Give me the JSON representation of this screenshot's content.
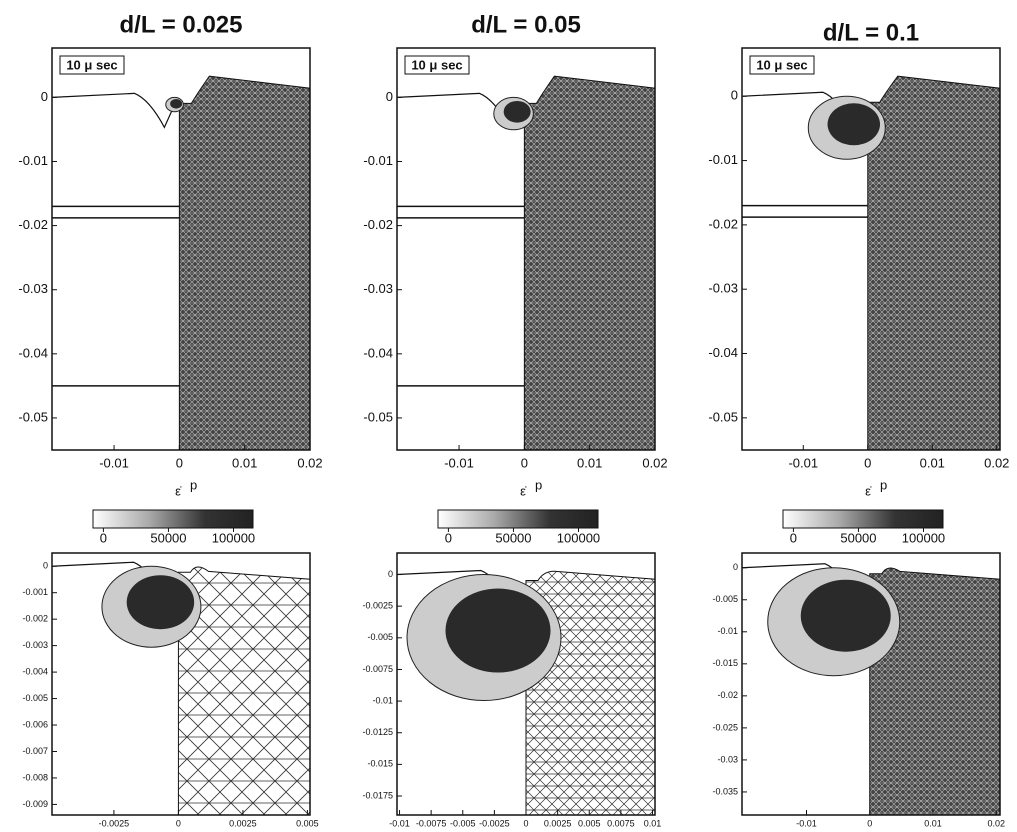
{
  "top_panels": [
    {
      "title": "d/L = 0.025",
      "time_label": "10 μ sec",
      "xlim": [
        -0.0195,
        0.02
      ],
      "ylim": [
        -0.055,
        0.0077
      ],
      "xticks": [
        -0.01,
        0,
        0.01,
        0.02
      ],
      "yticks": [
        0,
        -0.01,
        -0.02,
        -0.03,
        -0.04,
        -0.05
      ]
    },
    {
      "title": "d/L = 0.05",
      "time_label": "10 μ sec",
      "xlim": [
        -0.0195,
        0.02
      ],
      "ylim": [
        -0.055,
        0.0077
      ],
      "xticks": [
        -0.01,
        0,
        0.01,
        0.02
      ],
      "yticks": [
        0,
        -0.01,
        -0.02,
        -0.03,
        -0.04,
        -0.05
      ]
    },
    {
      "title": "d/L = 0.1",
      "time_label": "10 μ sec",
      "xlim": [
        -0.0195,
        0.0205
      ],
      "ylim": [
        -0.055,
        0.0075
      ],
      "xticks": [
        -0.01,
        0,
        0.01,
        0.02
      ],
      "yticks": [
        0,
        -0.01,
        -0.02,
        -0.03,
        -0.04,
        -0.05
      ]
    }
  ],
  "colorbars": [
    {
      "symbol": "ε̇",
      "superscript": "p",
      "clim": [
        -8000,
        115000
      ],
      "ticks": [
        0,
        50000,
        100000
      ]
    },
    {
      "symbol": "ε̇",
      "superscript": "p",
      "clim": [
        -8000,
        115000
      ],
      "ticks": [
        0,
        50000,
        100000
      ]
    },
    {
      "symbol": "ε̇",
      "superscript": "p",
      "clim": [
        -8000,
        115000
      ],
      "ticks": [
        0,
        50000,
        100000
      ]
    }
  ],
  "bottom_panels": [
    {
      "xlim": [
        -0.0049,
        0.0051
      ],
      "ylim": [
        -0.0094,
        0.0005
      ],
      "xticks": [
        -0.0025,
        0,
        0.0025,
        0.005
      ],
      "yticks": [
        0,
        -0.001,
        -0.002,
        -0.003,
        -0.004,
        -0.005,
        -0.006,
        -0.007,
        -0.008,
        -0.009
      ]
    },
    {
      "xlim": [
        -0.0102,
        0.0102
      ],
      "ylim": [
        -0.019,
        0.0017
      ],
      "xticks": [
        -0.01,
        -0.0075,
        -0.005,
        -0.0025,
        0,
        0.0025,
        0.005,
        0.0075,
        0.01
      ],
      "yticks": [
        0,
        -0.0025,
        -0.005,
        -0.0075,
        -0.01,
        -0.0125,
        -0.015,
        -0.0175
      ]
    },
    {
      "xlim": [
        -0.0202,
        0.0206
      ],
      "ylim": [
        -0.0386,
        0.0023
      ],
      "xticks": [
        -0.01,
        0,
        0.01,
        0.02
      ],
      "yticks": [
        0,
        -0.005,
        -0.01,
        -0.015,
        -0.02,
        -0.025,
        -0.03,
        -0.035
      ]
    }
  ]
}
